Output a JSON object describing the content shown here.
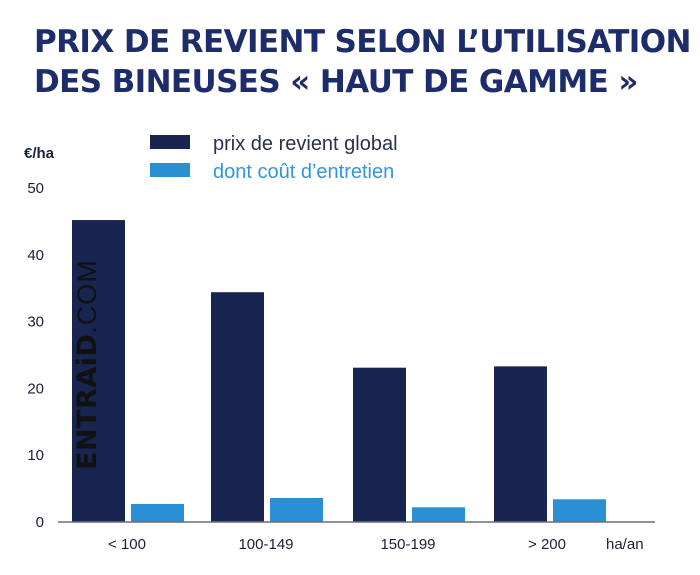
{
  "title": {
    "line1": "PRIX DE REVIENT SELON L’UTILISATION",
    "line2": "DES BINEUSES « HAUT DE GAMME »"
  },
  "brand": {
    "main": "ENTRAiD",
    "suffix": ".COM"
  },
  "colors": {
    "series_global": "#172550",
    "series_entretien": "#2b8fd6",
    "title": "#1d2c6b",
    "legend_entretien_text": "#3296da"
  },
  "chart_data": {
    "type": "bar",
    "categories": [
      "< 100",
      "100-149",
      "150-199",
      "> 200"
    ],
    "series": [
      {
        "name": "prix de revient global",
        "values": [
          45.2,
          34.4,
          23.1,
          23.3
        ]
      },
      {
        "name": "dont coût d’entretien",
        "values": [
          2.7,
          3.6,
          2.2,
          3.4
        ]
      }
    ],
    "ylim": [
      0,
      50
    ],
    "yticks": [
      0,
      10,
      20,
      30,
      40,
      50
    ],
    "ylabel": "€/ha",
    "xlabel": "ha/an",
    "legend": "top",
    "grid": false
  }
}
